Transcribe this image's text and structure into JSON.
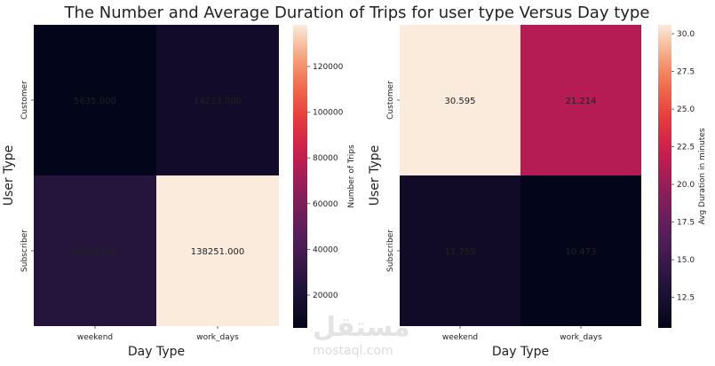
{
  "title": "The Number and Average Duration of Trips for user type Versus Day type",
  "watermark": {
    "arabic": "مستقل",
    "latin": "mostaql.com"
  },
  "chart_data": [
    {
      "type": "heatmap",
      "xlabel": "Day Type",
      "ylabel": "User Type",
      "x_categories": [
        "weekend",
        "work_days"
      ],
      "y_categories": [
        "Customer",
        "Subscriber"
      ],
      "cell_labels": [
        [
          "5635.000",
          "14233.000"
        ],
        [
          "25293.000",
          "138251.000"
        ]
      ],
      "values": [
        [
          5635,
          14233
        ],
        [
          25293,
          138251
        ]
      ],
      "colorbar": {
        "label": "Number of Trips",
        "range": [
          5635,
          138251
        ],
        "ticks": [
          20000,
          40000,
          60000,
          80000,
          100000,
          120000
        ],
        "tick_labels": [
          "20000",
          "40000",
          "60000",
          "80000",
          "100000",
          "120000"
        ]
      }
    },
    {
      "type": "heatmap",
      "xlabel": "Day Type",
      "ylabel": "User Type",
      "x_categories": [
        "weekend",
        "work_days"
      ],
      "y_categories": [
        "Customer",
        "Subscriber"
      ],
      "cell_labels": [
        [
          "30.595",
          "21.214"
        ],
        [
          "11.755",
          "10.473"
        ]
      ],
      "values": [
        [
          30.595,
          21.214
        ],
        [
          11.755,
          10.473
        ]
      ],
      "colorbar": {
        "label": "Avg Duration in minutes",
        "range": [
          10.473,
          30.595
        ],
        "ticks": [
          12.5,
          15.0,
          17.5,
          20.0,
          22.5,
          25.0,
          27.5,
          30.0
        ],
        "tick_labels": [
          "12.5",
          "15.0",
          "17.5",
          "20.0",
          "22.5",
          "25.0",
          "27.5",
          "30.0"
        ]
      }
    }
  ]
}
